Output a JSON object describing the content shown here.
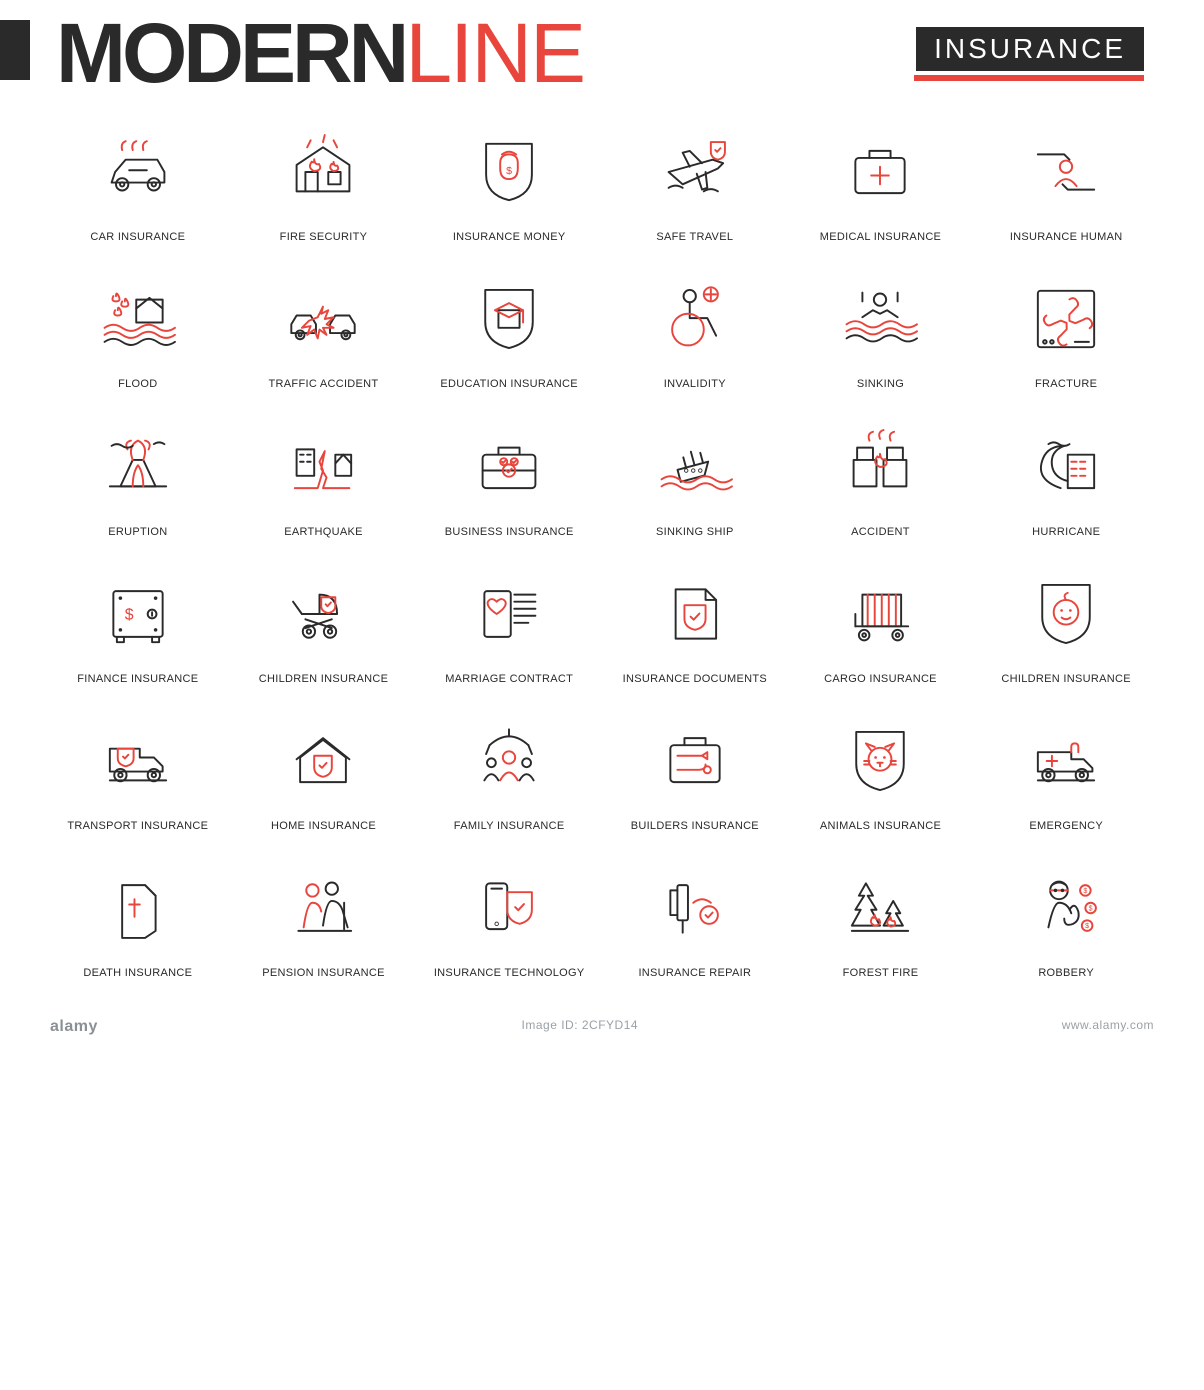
{
  "colors": {
    "black": "#2a2a2a",
    "red": "#e8453c",
    "grey": "#9aa1a6",
    "white": "#ffffff",
    "stroke_w": 2.2
  },
  "header": {
    "title_w1": "MODERN",
    "title_w2": "LINE",
    "title_w1_color": "#2a2a2a",
    "title_w2_color": "#e8453c",
    "badge_text": "INSURANCE",
    "badge_bg": "#2a2a2a",
    "badge_underline_color": "#e8453c"
  },
  "grid": {
    "cols": 6,
    "rows": 6,
    "icon_stroke_black": "#2a2a2a",
    "icon_stroke_red": "#e8453c"
  },
  "icons": [
    {
      "id": "car-insurance",
      "label": "CAR INSURANCE"
    },
    {
      "id": "fire-security",
      "label": "FIRE SECURITY"
    },
    {
      "id": "insurance-money",
      "label": "INSURANCE MONEY"
    },
    {
      "id": "safe-travel",
      "label": "SAFE TRAVEL"
    },
    {
      "id": "medical-insurance",
      "label": "MEDICAL INSURANCE"
    },
    {
      "id": "insurance-human",
      "label": "INSURANCE HUMAN"
    },
    {
      "id": "flood",
      "label": "FLOOD"
    },
    {
      "id": "traffic-accident",
      "label": "TRAFFIC ACCIDENT"
    },
    {
      "id": "education-insurance",
      "label": "EDUCATION INSURANCE"
    },
    {
      "id": "invalidity",
      "label": "INVALIDITY"
    },
    {
      "id": "sinking",
      "label": "SINKING"
    },
    {
      "id": "fracture",
      "label": "FRACTURE"
    },
    {
      "id": "eruption",
      "label": "ERUPTION"
    },
    {
      "id": "earthquake",
      "label": "EARTHQUAKE"
    },
    {
      "id": "business-insurance",
      "label": "BUSINESS INSURANCE"
    },
    {
      "id": "sinking-ship",
      "label": "SINKING SHIP"
    },
    {
      "id": "accident",
      "label": "ACCIDENT"
    },
    {
      "id": "hurricane",
      "label": "HURRICANE"
    },
    {
      "id": "finance-insurance",
      "label": "FINANCE INSURANCE"
    },
    {
      "id": "children-insurance-stroller",
      "label": "CHILDREN INSURANCE"
    },
    {
      "id": "marriage-contract",
      "label": "MARRIAGE CONTRACT"
    },
    {
      "id": "insurance-documents",
      "label": "INSURANCE DOCUMENTS"
    },
    {
      "id": "cargo-insurance",
      "label": "CARGO INSURANCE"
    },
    {
      "id": "children-insurance-baby",
      "label": "CHILDREN INSURANCE"
    },
    {
      "id": "transport-insurance",
      "label": "TRANSPORT INSURANCE"
    },
    {
      "id": "home-insurance",
      "label": "HOME INSURANCE"
    },
    {
      "id": "family-insurance",
      "label": "FAMILY INSURANCE"
    },
    {
      "id": "builders-insurance",
      "label": "BUILDERS INSURANCE"
    },
    {
      "id": "animals-insurance",
      "label": "ANIMALS INSURANCE"
    },
    {
      "id": "emergency",
      "label": "EMERGENCY"
    },
    {
      "id": "death-insurance",
      "label": "DEATH INSURANCE"
    },
    {
      "id": "pension-insurance",
      "label": "PENSION INSURANCE"
    },
    {
      "id": "insurance-technology",
      "label": "INSURANCE TECHNOLOGY"
    },
    {
      "id": "insurance-repair",
      "label": "INSURANCE REPAIR"
    },
    {
      "id": "forest-fire",
      "label": "FOREST FIRE"
    },
    {
      "id": "robbery",
      "label": "ROBBERY"
    }
  ],
  "watermark": {
    "logo_text": "alamy",
    "id_label": "Image ID: 2CFYD14",
    "site": "www.alamy.com"
  }
}
